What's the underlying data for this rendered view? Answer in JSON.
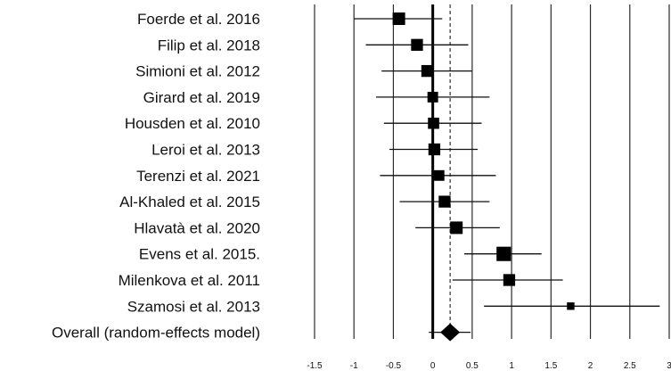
{
  "chart_data": {
    "type": "forest",
    "title": "",
    "xlabel": "",
    "xlim": [
      -1.5,
      3
    ],
    "x_ticks": [
      -1.5,
      -1,
      -0.5,
      0,
      0.5,
      1,
      1.5,
      2,
      2.5,
      3
    ],
    "x_tick_labels": [
      "-1.5",
      "-1",
      "-0.5",
      "0",
      "0.5",
      "1",
      "1.5",
      "2",
      "2.5",
      "3"
    ],
    "grid": "vertical",
    "null_line": 0,
    "pooled_line": 0.22,
    "studies": [
      {
        "label": "Foerde et al. 2016",
        "estimate": -0.43,
        "lower": -1.0,
        "upper": 0.12,
        "weight": 1.0
      },
      {
        "label": "Filip et al.  2018",
        "estimate": -0.2,
        "lower": -0.85,
        "upper": 0.45,
        "weight": 0.95
      },
      {
        "label": "Simioni et al.  2012",
        "estimate": -0.07,
        "lower": -0.65,
        "upper": 0.5,
        "weight": 0.95
      },
      {
        "label": "Girard et al. 2019",
        "estimate": 0.0,
        "lower": -0.72,
        "upper": 0.72,
        "weight": 0.85
      },
      {
        "label": "Housden et al.  2010",
        "estimate": 0.01,
        "lower": -0.62,
        "upper": 0.62,
        "weight": 0.9
      },
      {
        "label": "Leroi et al.  2013",
        "estimate": 0.02,
        "lower": -0.55,
        "upper": 0.57,
        "weight": 0.95
      },
      {
        "label": "Terenzi et al.  2021",
        "estimate": 0.08,
        "lower": -0.67,
        "upper": 0.8,
        "weight": 0.85
      },
      {
        "label": "Al-Khaled et al.  2015",
        "estimate": 0.15,
        "lower": -0.42,
        "upper": 0.72,
        "weight": 0.95
      },
      {
        "label": "Hlavatà et al.  2020",
        "estimate": 0.3,
        "lower": -0.22,
        "upper": 0.85,
        "weight": 1.0
      },
      {
        "label": "Evens et al. 2015.",
        "estimate": 0.9,
        "lower": 0.4,
        "upper": 1.38,
        "weight": 1.15
      },
      {
        "label": "Milenkova et al.  2011",
        "estimate": 0.97,
        "lower": 0.25,
        "upper": 1.65,
        "weight": 0.95
      },
      {
        "label": "Szamosi et al.  2013",
        "estimate": 1.75,
        "lower": 0.65,
        "upper": 2.88,
        "weight": 0.6
      }
    ],
    "overall": {
      "label": "Overall (random-effects model)",
      "estimate": 0.22,
      "lower": -0.05,
      "upper": 0.48
    }
  }
}
